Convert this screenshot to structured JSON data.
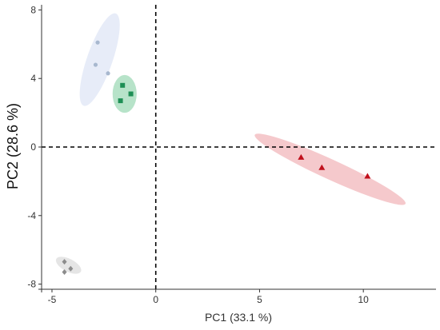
{
  "chart_data": {
    "type": "scatter",
    "title": "",
    "xlabel": "PC1 (33.1 %)",
    "ylabel": "PC2 (28.6 %)",
    "xlim": [
      -5.5,
      13.5
    ],
    "ylim": [
      -8.3,
      8.3
    ],
    "xticks": [
      -5,
      0,
      5,
      10
    ],
    "yticks": [
      8,
      4,
      0,
      -4,
      -8
    ],
    "grid": false,
    "legend": "none",
    "reference_lines": [
      {
        "axis": "x",
        "value": 0,
        "style": "dashed"
      },
      {
        "axis": "y",
        "value": 0,
        "style": "dashed"
      }
    ],
    "series": [
      {
        "marker": "circle",
        "color": "#a8b8cf",
        "ellipse_color": "#dfe6f5",
        "points": [
          {
            "x": -2.8,
            "y": 6.1
          },
          {
            "x": -2.9,
            "y": 4.8
          },
          {
            "x": -2.3,
            "y": 4.3
          }
        ],
        "ellipse": {
          "cx": -2.7,
          "cy": 5.1,
          "rx": 2.8,
          "ry": 0.62,
          "angle_deg": 74
        }
      },
      {
        "marker": "square",
        "color": "#1e8f55",
        "ellipse_color": "#9fd9b7",
        "points": [
          {
            "x": -1.6,
            "y": 3.6
          },
          {
            "x": -1.2,
            "y": 3.1
          },
          {
            "x": -1.7,
            "y": 2.7
          }
        ],
        "ellipse": {
          "cx": -1.5,
          "cy": 3.1,
          "rx": 1.1,
          "ry": 0.58,
          "angle_deg": 90
        }
      },
      {
        "marker": "triangle",
        "color": "#c0101c",
        "ellipse_color": "#f2b7bb",
        "points": [
          {
            "x": 7.0,
            "y": -0.6
          },
          {
            "x": 8.0,
            "y": -1.2
          },
          {
            "x": 10.2,
            "y": -1.7
          }
        ],
        "ellipse": {
          "cx": 8.4,
          "cy": -1.3,
          "rx": 4.15,
          "ry": 0.55,
          "angle_deg": -29
        }
      },
      {
        "marker": "diamond",
        "color": "#8c8c8c",
        "ellipse_color": "#dcdcdc",
        "points": [
          {
            "x": -4.4,
            "y": -6.7
          },
          {
            "x": -4.1,
            "y": -7.1
          },
          {
            "x": -4.4,
            "y": -7.3
          }
        ],
        "ellipse": {
          "cx": -4.2,
          "cy": -6.9,
          "rx": 0.7,
          "ry": 0.35,
          "angle_deg": -32
        }
      }
    ]
  }
}
